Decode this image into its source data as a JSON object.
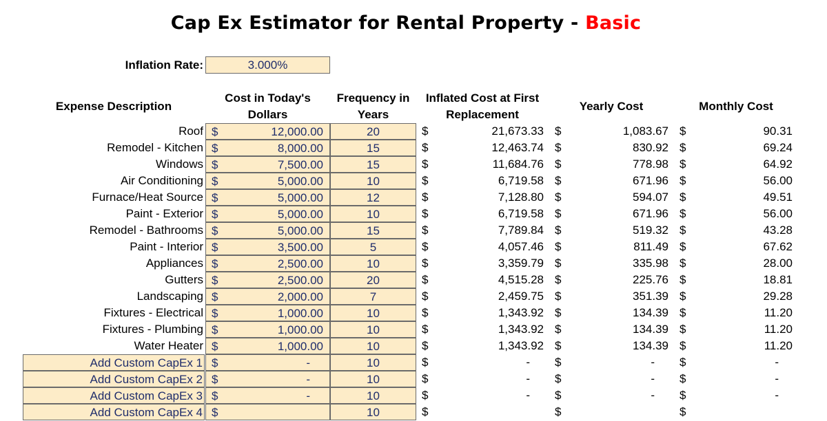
{
  "title": {
    "main": "Cap Ex Estimator for Rental Property - ",
    "accent": "Basic"
  },
  "inflation": {
    "label": "Inflation Rate:",
    "value": "3.000%"
  },
  "headers": {
    "description": "Expense Description",
    "cost_line1": "Cost in Today's",
    "cost_line2": "Dollars",
    "freq_line1": "Frequency in",
    "freq_line2": "Years",
    "inflated_line1": "Inflated Cost at First",
    "inflated_line2": "Replacement",
    "yearly": "Yearly Cost",
    "monthly": "Monthly Cost"
  },
  "currency_symbol": "$",
  "rows": [
    {
      "desc": "Roof",
      "cost": "12,000.00",
      "freq": "20",
      "inflated": "21,673.33",
      "yearly": "1,083.67",
      "monthly": "90.31"
    },
    {
      "desc": "Remodel - Kitchen",
      "cost": "8,000.00",
      "freq": "15",
      "inflated": "12,463.74",
      "yearly": "830.92",
      "monthly": "69.24"
    },
    {
      "desc": "Windows",
      "cost": "7,500.00",
      "freq": "15",
      "inflated": "11,684.76",
      "yearly": "778.98",
      "monthly": "64.92"
    },
    {
      "desc": "Air Conditioning",
      "cost": "5,000.00",
      "freq": "10",
      "inflated": "6,719.58",
      "yearly": "671.96",
      "monthly": "56.00"
    },
    {
      "desc": "Furnace/Heat Source",
      "cost": "5,000.00",
      "freq": "12",
      "inflated": "7,128.80",
      "yearly": "594.07",
      "monthly": "49.51"
    },
    {
      "desc": "Paint - Exterior",
      "cost": "5,000.00",
      "freq": "10",
      "inflated": "6,719.58",
      "yearly": "671.96",
      "monthly": "56.00"
    },
    {
      "desc": "Remodel - Bathrooms",
      "cost": "5,000.00",
      "freq": "15",
      "inflated": "7,789.84",
      "yearly": "519.32",
      "monthly": "43.28"
    },
    {
      "desc": "Paint - Interior",
      "cost": "3,500.00",
      "freq": "5",
      "inflated": "4,057.46",
      "yearly": "811.49",
      "monthly": "67.62"
    },
    {
      "desc": "Appliances",
      "cost": "2,500.00",
      "freq": "10",
      "inflated": "3,359.79",
      "yearly": "335.98",
      "monthly": "28.00"
    },
    {
      "desc": "Gutters",
      "cost": "2,500.00",
      "freq": "20",
      "inflated": "4,515.28",
      "yearly": "225.76",
      "monthly": "18.81"
    },
    {
      "desc": "Landscaping",
      "cost": "2,000.00",
      "freq": "7",
      "inflated": "2,459.75",
      "yearly": "351.39",
      "monthly": "29.28"
    },
    {
      "desc": "Fixtures - Electrical",
      "cost": "1,000.00",
      "freq": "10",
      "inflated": "1,343.92",
      "yearly": "134.39",
      "monthly": "11.20"
    },
    {
      "desc": "Fixtures - Plumbing",
      "cost": "1,000.00",
      "freq": "10",
      "inflated": "1,343.92",
      "yearly": "134.39",
      "monthly": "11.20"
    },
    {
      "desc": "Water Heater",
      "cost": "1,000.00",
      "freq": "10",
      "inflated": "1,343.92",
      "yearly": "134.39",
      "monthly": "11.20"
    },
    {
      "desc": "Add Custom CapEx 1",
      "cost": "-",
      "freq": "10",
      "inflated": "-",
      "yearly": "-",
      "monthly": "-",
      "custom": true
    },
    {
      "desc": "Add Custom CapEx 2",
      "cost": "-",
      "freq": "10",
      "inflated": "-",
      "yearly": "-",
      "monthly": "-",
      "custom": true
    },
    {
      "desc": "Add Custom CapEx 3",
      "cost": "-",
      "freq": "10",
      "inflated": "-",
      "yearly": "-",
      "monthly": "-",
      "custom": true
    },
    {
      "desc": "Add Custom CapEx 4",
      "cost": "",
      "freq": "10",
      "inflated": "",
      "yearly": "",
      "monthly": "",
      "custom": true
    }
  ],
  "colors": {
    "input_fill": "#fdecc8",
    "input_text": "#1f2d6b",
    "accent": "#ff0000",
    "border": "#6a6a6a"
  }
}
